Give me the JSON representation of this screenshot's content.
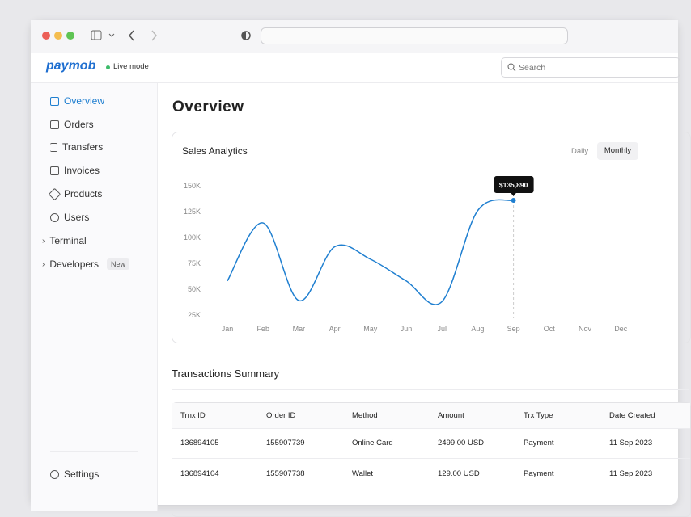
{
  "header": {
    "logo": "paymob",
    "mode": "Live mode",
    "search": "Search"
  },
  "sidebar": {
    "items": [
      {
        "label": "Overview"
      },
      {
        "label": "Orders"
      },
      {
        "label": "Transfers"
      },
      {
        "label": "Invoices"
      },
      {
        "label": "Products"
      },
      {
        "label": "Users"
      },
      {
        "label": "Terminal"
      },
      {
        "label": "Developers",
        "badge": "New"
      }
    ],
    "settings": "Settings"
  },
  "main": {
    "title": "Overview",
    "toggles": [
      "Daily",
      "Monthly"
    ]
  },
  "chart_data": {
    "type": "line",
    "title": "Sales Analytics",
    "categories": [
      "Jan",
      "Feb",
      "Mar",
      "Apr",
      "May",
      "Jun",
      "Jul",
      "Aug",
      "Sep",
      "Oct",
      "Nov",
      "Dec"
    ],
    "series": [
      {
        "name": "Sales",
        "color": "#1f7fd0",
        "values": [
          58000,
          114000,
          39000,
          91000,
          79000,
          58000,
          38000,
          126000,
          135890,
          null,
          null,
          null
        ],
        "value_labels": [
          null,
          null,
          null,
          null,
          null,
          null,
          null,
          null,
          "$135,890",
          null,
          null,
          null
        ]
      }
    ],
    "ylim": [
      25000,
      150000
    ],
    "yticks": [
      {
        "value": 150000,
        "label": "150K"
      },
      {
        "value": 125000,
        "label": "125K"
      },
      {
        "value": 100000,
        "label": "100K"
      },
      {
        "value": 75000,
        "label": "75K"
      },
      {
        "value": 50000,
        "label": "50K"
      },
      {
        "value": 25000,
        "label": "25K"
      }
    ],
    "grid": false
  },
  "table": {
    "title": "Transactions Summary",
    "columns": [
      "Trnx ID",
      "Order ID",
      "Method",
      "Amount",
      "Trx Type",
      "Date Created"
    ],
    "rows": [
      [
        "136894105",
        "155907739",
        "Online Card",
        "2499.00 USD",
        "Payment",
        "11 Sep 2023"
      ],
      [
        "136894104",
        "155907738",
        "Wallet",
        "129.00 USD",
        "Payment",
        "11 Sep 2023"
      ]
    ]
  }
}
